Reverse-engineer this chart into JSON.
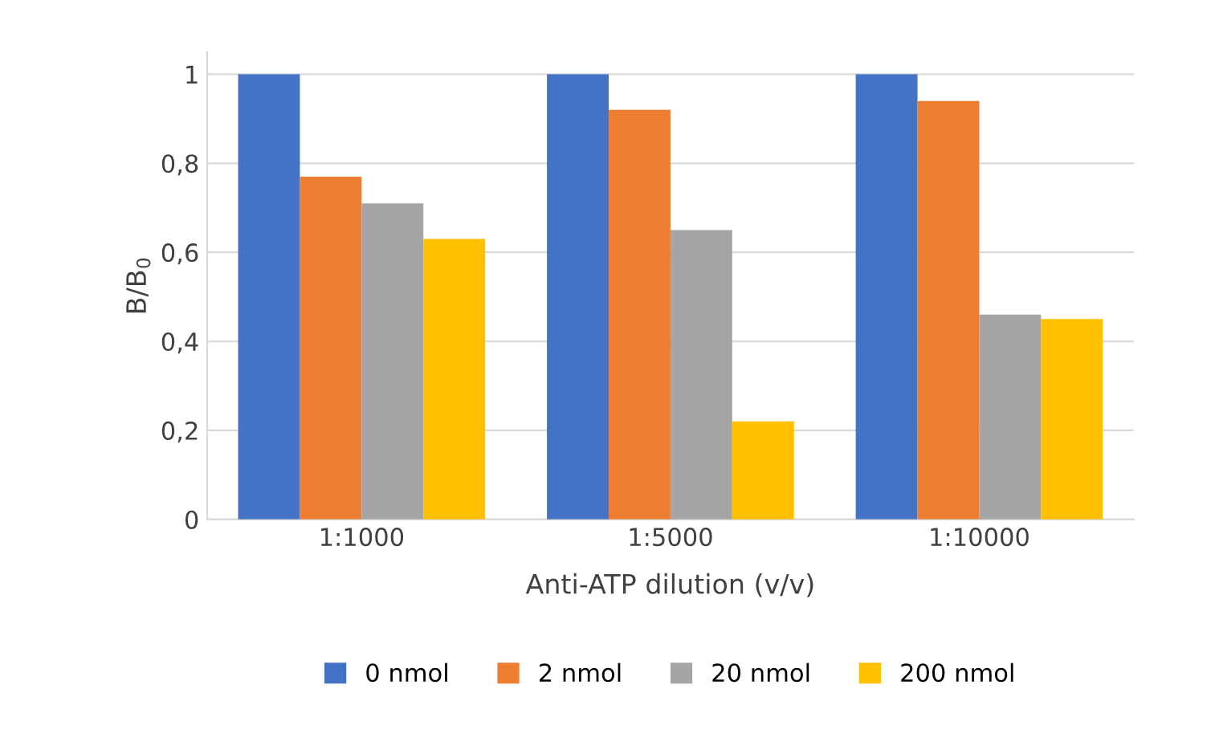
{
  "chart_data": {
    "type": "bar",
    "xlabel": "Anti-ATP dilution (v/v)",
    "ylabel": "B/B$_{0}$",
    "categories": [
      "1:1000",
      "1:5000",
      "1:10000"
    ],
    "series": [
      {
        "name": "0 nmol",
        "color": "#4472c4",
        "values": [
          1.0,
          1.0,
          1.0
        ]
      },
      {
        "name": "2 nmol",
        "color": "#ed7d31",
        "values": [
          0.77,
          0.92,
          0.94
        ]
      },
      {
        "name": "20 nmol",
        "color": "#a5a5a5",
        "values": [
          0.71,
          0.65,
          0.46
        ]
      },
      {
        "name": "200 nmol",
        "color": "#ffc000",
        "values": [
          0.63,
          0.22,
          0.45
        ]
      }
    ],
    "ylim": [
      0,
      1.05
    ],
    "yticks": [
      {
        "value": 0,
        "label": "0"
      },
      {
        "value": 0.2,
        "label": "0,2"
      },
      {
        "value": 0.4,
        "label": "0,4"
      },
      {
        "value": 0.6,
        "label": "0,6"
      },
      {
        "value": 0.8,
        "label": "0,8"
      },
      {
        "value": 1,
        "label": "1"
      }
    ],
    "grid": "y",
    "legend": "bottom"
  }
}
